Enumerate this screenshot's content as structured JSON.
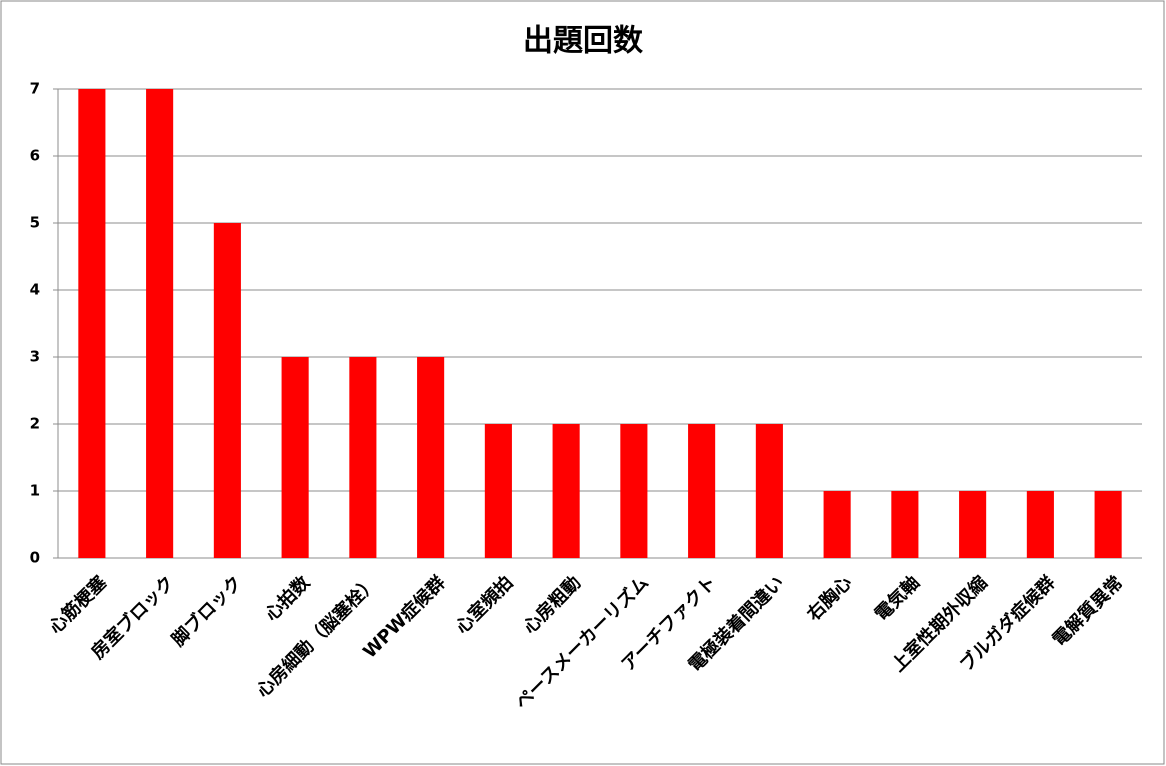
{
  "chart_data": {
    "type": "bar",
    "title": "出題回数",
    "categories": [
      "心筋梗塞",
      "房室ブロック",
      "脚ブロック",
      "心拍数",
      "心房細動（脳塞栓）",
      "WPW症候群",
      "心室頻拍",
      "心房粗動",
      "ペースメーカーリズム",
      "アーチファクト",
      "電極装着間違い",
      "右胸心",
      "電気軸",
      "上室性期外収縮",
      "ブルガダ症候群",
      "電解質異常"
    ],
    "values": [
      7,
      7,
      5,
      3,
      3,
      3,
      2,
      2,
      2,
      2,
      2,
      1,
      1,
      1,
      1,
      1
    ],
    "color": "#ff0000",
    "ylim": [
      0,
      7
    ],
    "yticks": [
      0,
      1,
      2,
      3,
      4,
      5,
      6,
      7
    ],
    "grid": true
  }
}
